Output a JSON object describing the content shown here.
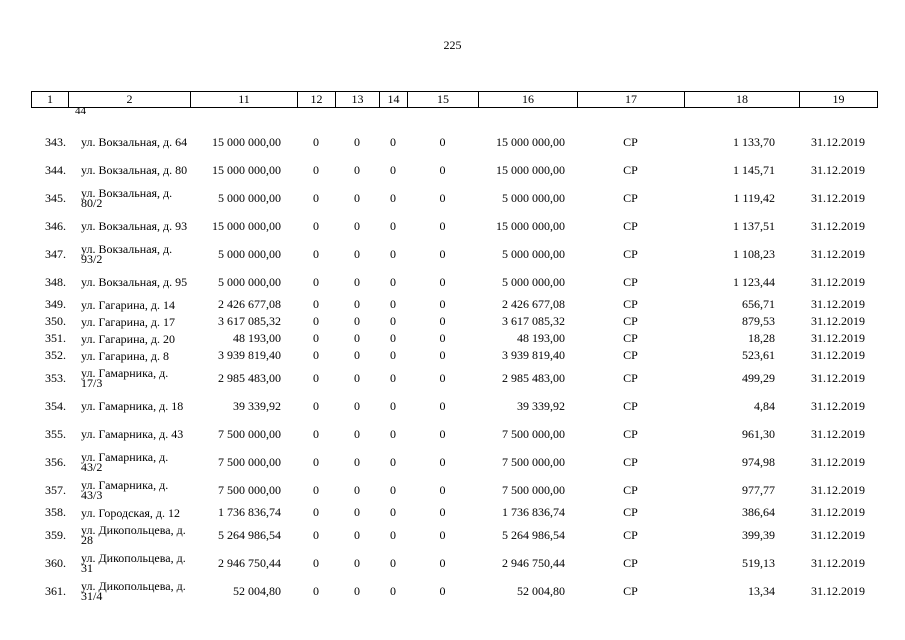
{
  "page_number": "225",
  "columns": [
    "1",
    "2",
    "11",
    "12",
    "13",
    "14",
    "15",
    "16",
    "17",
    "18",
    "19"
  ],
  "carry_over": "44",
  "rows": [
    {
      "num": "343.",
      "address": "ул. Вокзальная, д. 64",
      "c11": "15 000 000,00",
      "c12": "0",
      "c13": "0",
      "c14": "0",
      "c15": "0",
      "c16": "15 000 000,00",
      "c17": "СР",
      "c18": "1 133,70",
      "c19": "31.12.2019"
    },
    {
      "num": "344.",
      "address": "ул. Вокзальная, д. 80",
      "c11": "15 000 000,00",
      "c12": "0",
      "c13": "0",
      "c14": "0",
      "c15": "0",
      "c16": "15 000 000,00",
      "c17": "СР",
      "c18": "1 145,71",
      "c19": "31.12.2019"
    },
    {
      "num": "345.",
      "address": "ул. Вокзальная, д. 80/2",
      "c11": "5 000 000,00",
      "c12": "0",
      "c13": "0",
      "c14": "0",
      "c15": "0",
      "c16": "5 000 000,00",
      "c17": "СР",
      "c18": "1 119,42",
      "c19": "31.12.2019"
    },
    {
      "num": "346.",
      "address": "ул. Вокзальная, д. 93",
      "c11": "15 000 000,00",
      "c12": "0",
      "c13": "0",
      "c14": "0",
      "c15": "0",
      "c16": "15 000 000,00",
      "c17": "СР",
      "c18": "1 137,51",
      "c19": "31.12.2019"
    },
    {
      "num": "347.",
      "address": "ул. Вокзальная, д. 93/2",
      "c11": "5 000 000,00",
      "c12": "0",
      "c13": "0",
      "c14": "0",
      "c15": "0",
      "c16": "5 000 000,00",
      "c17": "СР",
      "c18": "1 108,23",
      "c19": "31.12.2019"
    },
    {
      "num": "348.",
      "address": "ул. Вокзальная, д. 95",
      "c11": "5 000 000,00",
      "c12": "0",
      "c13": "0",
      "c14": "0",
      "c15": "0",
      "c16": "5 000 000,00",
      "c17": "СР",
      "c18": "1 123,44",
      "c19": "31.12.2019"
    },
    {
      "num": "349.",
      "address": "ул. Гагарина, д. 14",
      "c11": "2 426 677,08",
      "c12": "0",
      "c13": "0",
      "c14": "0",
      "c15": "0",
      "c16": "2 426 677,08",
      "c17": "СР",
      "c18": "656,71",
      "c19": "31.12.2019"
    },
    {
      "num": "350.",
      "address": "ул. Гагарина, д. 17",
      "c11": "3 617 085,32",
      "c12": "0",
      "c13": "0",
      "c14": "0",
      "c15": "0",
      "c16": "3 617 085,32",
      "c17": "СР",
      "c18": "879,53",
      "c19": "31.12.2019"
    },
    {
      "num": "351.",
      "address": "ул. Гагарина, д. 20",
      "c11": "48 193,00",
      "c12": "0",
      "c13": "0",
      "c14": "0",
      "c15": "0",
      "c16": "48 193,00",
      "c17": "СР",
      "c18": "18,28",
      "c19": "31.12.2019"
    },
    {
      "num": "352.",
      "address": "ул. Гагарина, д. 8",
      "c11": "3 939 819,40",
      "c12": "0",
      "c13": "0",
      "c14": "0",
      "c15": "0",
      "c16": "3 939 819,40",
      "c17": "СР",
      "c18": "523,61",
      "c19": "31.12.2019"
    },
    {
      "num": "353.",
      "address": "ул. Гамарника, д. 17/3",
      "c11": "2 985 483,00",
      "c12": "0",
      "c13": "0",
      "c14": "0",
      "c15": "0",
      "c16": "2 985 483,00",
      "c17": "СР",
      "c18": "499,29",
      "c19": "31.12.2019"
    },
    {
      "num": "354.",
      "address": "ул. Гамарника, д. 18",
      "c11": "39 339,92",
      "c12": "0",
      "c13": "0",
      "c14": "0",
      "c15": "0",
      "c16": "39 339,92",
      "c17": "СР",
      "c18": "4,84",
      "c19": "31.12.2019"
    },
    {
      "num": "355.",
      "address": "ул. Гамарника, д. 43",
      "c11": "7 500 000,00",
      "c12": "0",
      "c13": "0",
      "c14": "0",
      "c15": "0",
      "c16": "7 500 000,00",
      "c17": "СР",
      "c18": "961,30",
      "c19": "31.12.2019"
    },
    {
      "num": "356.",
      "address": "ул. Гамарника, д. 43/2",
      "c11": "7 500 000,00",
      "c12": "0",
      "c13": "0",
      "c14": "0",
      "c15": "0",
      "c16": "7 500 000,00",
      "c17": "СР",
      "c18": "974,98",
      "c19": "31.12.2019"
    },
    {
      "num": "357.",
      "address": "ул. Гамарника, д. 43/3",
      "c11": "7 500 000,00",
      "c12": "0",
      "c13": "0",
      "c14": "0",
      "c15": "0",
      "c16": "7 500 000,00",
      "c17": "СР",
      "c18": "977,77",
      "c19": "31.12.2019"
    },
    {
      "num": "358.",
      "address": "ул. Городская, д. 12",
      "c11": "1 736 836,74",
      "c12": "0",
      "c13": "0",
      "c14": "0",
      "c15": "0",
      "c16": "1 736 836,74",
      "c17": "СР",
      "c18": "386,64",
      "c19": "31.12.2019"
    },
    {
      "num": "359.",
      "address": "ул. Дикопольцева, д. 28",
      "c11": "5 264 986,54",
      "c12": "0",
      "c13": "0",
      "c14": "0",
      "c15": "0",
      "c16": "5 264 986,54",
      "c17": "СР",
      "c18": "399,39",
      "c19": "31.12.2019"
    },
    {
      "num": "360.",
      "address": "ул. Дикопольцева, д. 31",
      "c11": "2 946 750,44",
      "c12": "0",
      "c13": "0",
      "c14": "0",
      "c15": "0",
      "c16": "2 946 750,44",
      "c17": "СР",
      "c18": "519,13",
      "c19": "31.12.2019"
    },
    {
      "num": "361.",
      "address": "ул. Дикопольцева, д. 31/4",
      "c11": "52 004,80",
      "c12": "0",
      "c13": "0",
      "c14": "0",
      "c15": "0",
      "c16": "52 004,80",
      "c17": "СР",
      "c18": "13,34",
      "c19": "31.12.2019"
    }
  ]
}
